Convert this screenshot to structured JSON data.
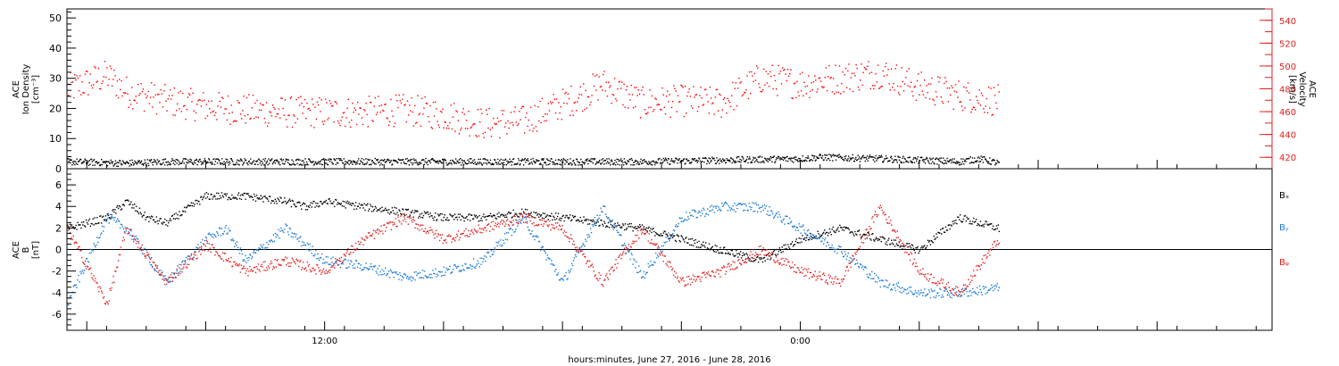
{
  "footer": {
    "xlabel": "hours:minutes, June 27, 2016 - June 28, 2016"
  },
  "chart_data": [
    {
      "type": "scatter",
      "panel": "plasma",
      "title": "",
      "ylabel_left": [
        "ACE",
        "Ion Density",
        "[cm⁻³]"
      ],
      "ylabel_right": [
        "ACE",
        "Velocity",
        "[km/s]"
      ],
      "ylim_left": [
        0,
        53
      ],
      "ylim_right": [
        410,
        550
      ],
      "yticks_left": [
        "0",
        "10",
        "20",
        "30",
        "40",
        "50"
      ],
      "yticks_right": [
        "420",
        "440",
        "460",
        "480",
        "500",
        "520",
        "540"
      ],
      "x_range_hours": [
        -0.5,
        29.9
      ],
      "data_end_hour": 23.0,
      "series": [
        {
          "axis": "left",
          "color": "#000000",
          "x_hours": [
            -0.5,
            1,
            2,
            4,
            6,
            8,
            10,
            12,
            14,
            16,
            18,
            18.5,
            20,
            21,
            22,
            22.5,
            23
          ],
          "values": [
            2.5,
            2,
            2.5,
            2.5,
            2.5,
            2.5,
            2.5,
            2.5,
            2.5,
            3,
            3.5,
            4,
            3.5,
            3,
            2.5,
            3.5,
            2
          ]
        },
        {
          "axis": "right",
          "color": "#ff0000",
          "x_hours": [
            -0.5,
            0.5,
            1,
            2,
            3,
            4,
            5,
            6,
            7,
            8,
            9,
            10,
            11,
            12.5,
            13,
            14,
            15,
            16,
            17,
            18,
            19,
            20,
            21,
            22,
            23
          ],
          "values": [
            480,
            492,
            478,
            470,
            465,
            462,
            460,
            460,
            460,
            462,
            458,
            450,
            452,
            475,
            485,
            468,
            470,
            468,
            490,
            485,
            490,
            495,
            482,
            475,
            470
          ]
        }
      ]
    },
    {
      "type": "scatter",
      "panel": "magnetic",
      "title": "",
      "ylabel_left": [
        "ACE",
        "B",
        "[nT]"
      ],
      "ylim": [
        -7.5,
        7.5
      ],
      "yticks": [
        "-6",
        "-4",
        "-2",
        "0",
        "2",
        "4",
        "6"
      ],
      "x_range_hours": [
        -0.5,
        29.9
      ],
      "xticks": [
        "12:00",
        "0:00"
      ],
      "xtick_hours": [
        6,
        18
      ],
      "data_end_hour": 23.0,
      "series": [
        {
          "name": "Bₓ",
          "color": "#000000",
          "x_hours": [
            -0.5,
            0.5,
            1,
            1.5,
            2,
            3,
            4,
            5,
            5.5,
            6,
            7,
            8,
            9,
            10,
            11,
            12,
            13,
            14,
            15,
            16,
            17,
            18,
            19,
            20,
            21,
            22,
            23
          ],
          "values": [
            2,
            3,
            4.5,
            3,
            2.5,
            5,
            5,
            4.5,
            4,
            4.5,
            4,
            3.5,
            3,
            3,
            3.5,
            3,
            2.5,
            2,
            1,
            0,
            -1,
            1,
            2,
            1,
            0,
            3,
            2
          ]
        },
        {
          "name": "Bᵧ",
          "color": "#1a7ad4",
          "x_hours": [
            -0.5,
            0.5,
            1,
            2,
            3,
            3.5,
            4,
            5,
            6,
            7,
            8,
            9,
            10,
            11,
            12,
            13,
            14,
            15,
            16,
            17,
            18,
            19,
            20,
            21,
            22,
            23
          ],
          "values": [
            -5,
            3,
            2,
            -3,
            1,
            2,
            -1,
            2,
            -1,
            -1.5,
            -2.5,
            -2,
            -1,
            3,
            -3,
            4,
            -2.5,
            3,
            4,
            4,
            2,
            0,
            -3,
            -4,
            -4,
            -3.5
          ]
        },
        {
          "name": "Bᵩ",
          "color": "#e02020",
          "x_hours": [
            -0.5,
            0.5,
            1,
            2,
            3,
            4,
            5,
            6,
            7,
            8,
            9,
            10,
            11,
            12,
            13,
            14,
            15,
            16,
            17,
            18,
            19,
            20,
            21,
            22,
            23
          ],
          "values": [
            2,
            -5,
            2,
            -3,
            0.5,
            -2,
            -1,
            -2,
            1,
            3,
            1,
            2,
            3,
            2,
            -3,
            2,
            -3,
            -2,
            0,
            -2,
            -3,
            4,
            -2,
            -4,
            1
          ]
        }
      ]
    }
  ]
}
